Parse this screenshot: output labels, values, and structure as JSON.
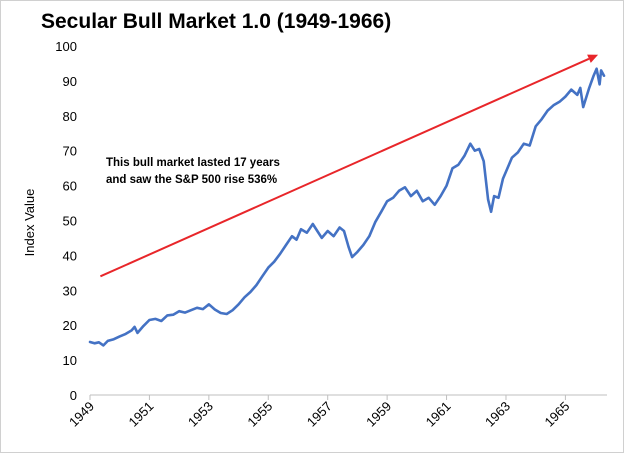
{
  "chart_data": {
    "type": "line",
    "title": "Secular Bull Market 1.0 (1949-1966)",
    "xlabel": "",
    "ylabel": "Index Value",
    "xlim": [
      1949,
      1966.4
    ],
    "ylim": [
      0,
      100
    ],
    "y_ticks": [
      "0",
      "10",
      "20",
      "30",
      "40",
      "50",
      "60",
      "70",
      "80",
      "90",
      "100"
    ],
    "x_ticks": [
      "1949",
      "1951",
      "1953",
      "1955",
      "1957",
      "1959",
      "1961",
      "1963",
      "1965"
    ],
    "grid": false,
    "annotation": {
      "lines": [
        "This bull market lasted 17 years",
        "and saw the S&P 500 rise 536%"
      ]
    },
    "trend_arrow": {
      "color": "#e8262a",
      "from": [
        1949.35,
        34
      ],
      "to": [
        1966.1,
        97.5
      ]
    },
    "series": [
      {
        "color": "#4472c4",
        "x": [
          1949.0,
          1949.15,
          1949.3,
          1949.45,
          1949.6,
          1949.8,
          1950.0,
          1950.2,
          1950.4,
          1950.5,
          1950.6,
          1950.8,
          1951.0,
          1951.2,
          1951.4,
          1951.6,
          1951.8,
          1952.0,
          1952.2,
          1952.4,
          1952.6,
          1952.8,
          1953.0,
          1953.2,
          1953.4,
          1953.6,
          1953.8,
          1954.0,
          1954.2,
          1954.4,
          1954.6,
          1954.8,
          1955.0,
          1955.2,
          1955.4,
          1955.6,
          1955.8,
          1955.95,
          1956.1,
          1956.3,
          1956.5,
          1956.65,
          1956.8,
          1957.0,
          1957.2,
          1957.4,
          1957.55,
          1957.7,
          1957.82,
          1958.0,
          1958.2,
          1958.4,
          1958.6,
          1958.8,
          1959.0,
          1959.2,
          1959.4,
          1959.6,
          1959.8,
          1960.0,
          1960.2,
          1960.4,
          1960.6,
          1960.8,
          1961.0,
          1961.2,
          1961.4,
          1961.6,
          1961.8,
          1961.95,
          1962.1,
          1962.25,
          1962.4,
          1962.5,
          1962.6,
          1962.75,
          1962.9,
          1963.0,
          1963.2,
          1963.4,
          1963.6,
          1963.8,
          1964.0,
          1964.2,
          1964.4,
          1964.6,
          1964.8,
          1965.0,
          1965.2,
          1965.4,
          1965.5,
          1965.6,
          1965.8,
          1965.95,
          1966.05,
          1966.15,
          1966.2,
          1966.3
        ],
        "values": [
          15.2,
          14.8,
          15.1,
          14.2,
          15.5,
          16.0,
          16.8,
          17.5,
          18.5,
          19.5,
          17.8,
          19.8,
          21.5,
          21.8,
          21.2,
          22.8,
          23.0,
          24.0,
          23.6,
          24.3,
          25.0,
          24.6,
          26.0,
          24.5,
          23.5,
          23.2,
          24.3,
          26.0,
          28.0,
          29.5,
          31.5,
          34.0,
          36.5,
          38.2,
          40.5,
          43.0,
          45.5,
          44.5,
          47.5,
          46.5,
          49.0,
          47.0,
          45.0,
          47.0,
          45.5,
          48.0,
          47.0,
          42.5,
          39.5,
          41.0,
          43.0,
          45.5,
          49.5,
          52.5,
          55.5,
          56.5,
          58.5,
          59.5,
          57.0,
          58.5,
          55.5,
          56.5,
          54.5,
          57.0,
          60.0,
          65.0,
          66.0,
          68.5,
          72.0,
          70.0,
          70.5,
          67.0,
          56.0,
          52.5,
          57.0,
          56.5,
          62.0,
          64.0,
          68.0,
          69.5,
          72.0,
          71.5,
          77.0,
          79.0,
          81.5,
          83.0,
          84.0,
          85.5,
          87.5,
          86.0,
          88.0,
          82.5,
          88.0,
          91.5,
          93.5,
          89.0,
          93.0,
          91.5
        ]
      }
    ]
  }
}
